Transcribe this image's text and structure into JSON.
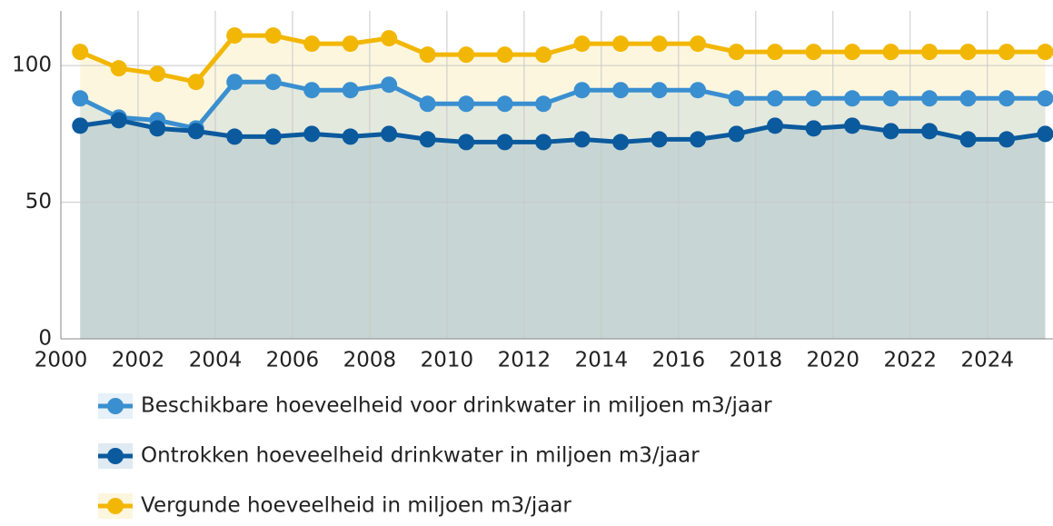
{
  "chart_data": {
    "type": "line",
    "x": [
      2000.5,
      2001.5,
      2002.5,
      2003.5,
      2004.5,
      2005.5,
      2006.5,
      2007.5,
      2008.5,
      2009.5,
      2010.5,
      2011.5,
      2012.5,
      2013.5,
      2014.5,
      2015.5,
      2016.5,
      2017.5,
      2018.5,
      2019.5,
      2020.5,
      2021.5,
      2022.5,
      2023.5,
      2024.5,
      2025.5
    ],
    "series": [
      {
        "name": "Vergunde hoeveelheid in miljoen m3/jaar",
        "color": "#f2b705",
        "values": [
          105,
          99,
          97,
          94,
          111,
          111,
          108,
          108,
          110,
          104,
          104,
          104,
          104,
          108,
          108,
          108,
          108,
          105,
          105,
          105,
          105,
          105,
          105,
          105,
          105,
          105
        ]
      },
      {
        "name": "Beschikbare hoeveelheid voor drinkwater in miljoen m3/jaar",
        "color": "#3a8fd0",
        "values": [
          88,
          81,
          80,
          77,
          94,
          94,
          91,
          91,
          93,
          86,
          86,
          86,
          86,
          91,
          91,
          91,
          91,
          88,
          88,
          88,
          88,
          88,
          88,
          88,
          88,
          88
        ]
      },
      {
        "name": "Ontrokken hoeveelheid drinkwater in miljoen m3/jaar",
        "color": "#0b5a9e",
        "values": [
          78,
          80,
          77,
          76,
          74,
          74,
          75,
          74,
          75,
          73,
          72,
          72,
          72,
          73,
          72,
          73,
          73,
          75,
          78,
          77,
          78,
          76,
          76,
          73,
          73,
          75
        ]
      }
    ],
    "legend_order": [
      1,
      2,
      0
    ],
    "xlim": [
      2000,
      2025.7
    ],
    "xticks": [
      2000,
      2002,
      2004,
      2006,
      2008,
      2010,
      2012,
      2014,
      2016,
      2018,
      2020,
      2022,
      2024
    ],
    "ylim": [
      0,
      120
    ],
    "yticks": [
      0,
      50,
      100
    ],
    "grid": true
  }
}
